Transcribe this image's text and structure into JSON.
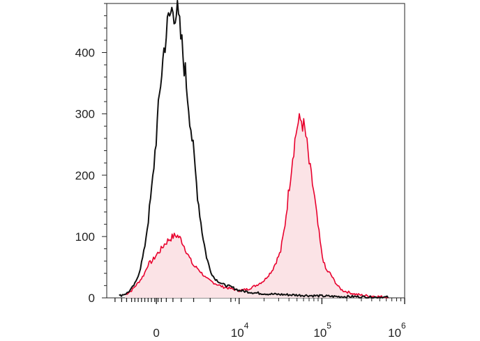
{
  "chart_data": {
    "type": "area",
    "title": "",
    "xlabel": "",
    "ylabel": "",
    "x_scale": "logicle",
    "grid": false,
    "legend": "none",
    "ylim": [
      0,
      480
    ],
    "yticks": [
      0,
      100,
      200,
      300,
      400
    ],
    "ytick_labels": [
      "0",
      "100",
      "200",
      "300",
      "400"
    ],
    "xtick_labels": [
      {
        "base": "0",
        "exp": ""
      },
      {
        "base": "10",
        "exp": "4"
      },
      {
        "base": "10",
        "exp": "5"
      },
      {
        "base": "10",
        "exp": "6"
      }
    ],
    "series": [
      {
        "style": "filled",
        "color": "#e8002d",
        "fill": "#fbe3e6",
        "x": [
          -0.38,
          -0.3,
          -0.25,
          -0.2,
          -0.15,
          -0.1,
          -0.05,
          0.0,
          0.05,
          0.1,
          0.15,
          0.2,
          0.25,
          0.3,
          0.35,
          0.4,
          0.45,
          0.5,
          0.55,
          0.6,
          0.7,
          0.8,
          0.9,
          1.0,
          1.1,
          1.2,
          1.3,
          1.4,
          1.5,
          1.55,
          1.6,
          1.65,
          1.7,
          1.75,
          1.8,
          1.85,
          1.9,
          1.95,
          2.0,
          2.05,
          2.1,
          2.15,
          2.2,
          2.25,
          2.3,
          2.35,
          2.4,
          2.5,
          2.6,
          2.7,
          2.8
        ],
        "y": [
          5,
          12,
          20,
          28,
          38,
          55,
          60,
          70,
          78,
          88,
          95,
          100,
          102,
          95,
          80,
          65,
          52,
          48,
          40,
          32,
          24,
          18,
          15,
          12,
          14,
          20,
          28,
          45,
          75,
          115,
          175,
          235,
          280,
          292,
          270,
          215,
          175,
          120,
          70,
          45,
          40,
          28,
          18,
          12,
          10,
          8,
          6,
          4,
          3,
          2,
          1
        ]
      },
      {
        "style": "line",
        "color": "#111111",
        "x": [
          -0.45,
          -0.35,
          -0.3,
          -0.25,
          -0.2,
          -0.15,
          -0.1,
          -0.05,
          0.0,
          0.05,
          0.1,
          0.15,
          0.2,
          0.25,
          0.3,
          0.35,
          0.4,
          0.45,
          0.5,
          0.55,
          0.6,
          0.65,
          0.7,
          0.8,
          0.9,
          1.0,
          1.1,
          1.2,
          1.4,
          1.6,
          1.8,
          2.0,
          2.2,
          2.4,
          2.6,
          2.8
        ],
        "y": [
          3,
          8,
          15,
          25,
          45,
          75,
          125,
          185,
          265,
          350,
          415,
          455,
          472,
          465,
          420,
          365,
          300,
          235,
          165,
          110,
          70,
          45,
          32,
          22,
          18,
          12,
          10,
          8,
          6,
          5,
          4,
          3,
          2,
          2,
          1,
          1
        ]
      }
    ]
  }
}
